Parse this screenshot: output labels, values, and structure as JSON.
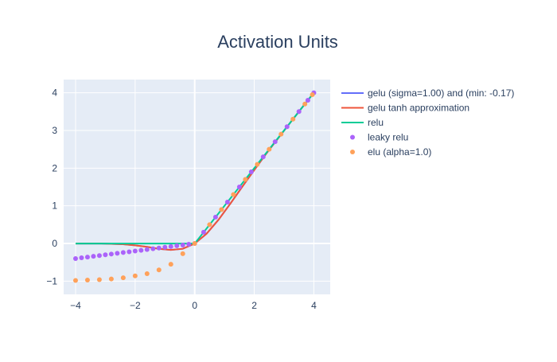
{
  "chart_data": {
    "type": "line",
    "title": "Activation Units",
    "xlabel": "",
    "ylabel": "",
    "xlim": [
      -4.4,
      4.55
    ],
    "ylim": [
      -1.35,
      4.35
    ],
    "xticks": [
      -4,
      -2,
      0,
      2,
      4
    ],
    "yticks": [
      -1,
      0,
      1,
      2,
      3,
      4
    ],
    "grid": true,
    "legend_position": "right",
    "colors": {
      "plot_bg": "#e5ecf6",
      "grid": "#ffffff",
      "text": "#2a3f5f"
    },
    "series": [
      {
        "name": "gelu (sigma=1.00) and (min: -0.17)",
        "mode": "lines",
        "color": "#636efa",
        "x": [
          -4,
          -3.6,
          -3.2,
          -2.8,
          -2.4,
          -2.0,
          -1.6,
          -1.2,
          -0.8,
          -0.4,
          0,
          0.4,
          0.8,
          1.2,
          1.6,
          2.0,
          2.4,
          2.8,
          3.2,
          3.6,
          4.0
        ],
        "y": [
          0.0,
          0.0,
          0.0,
          -0.01,
          -0.02,
          -0.05,
          -0.09,
          -0.14,
          -0.17,
          -0.14,
          0.0,
          0.26,
          0.63,
          1.06,
          1.51,
          1.95,
          2.38,
          2.79,
          3.2,
          3.6,
          4.0
        ]
      },
      {
        "name": "gelu tanh approximation",
        "mode": "lines",
        "color": "#ef553b",
        "x": [
          -4,
          -3.6,
          -3.2,
          -2.8,
          -2.4,
          -2.0,
          -1.6,
          -1.2,
          -0.8,
          -0.4,
          0,
          0.4,
          0.8,
          1.2,
          1.6,
          2.0,
          2.4,
          2.8,
          3.2,
          3.6,
          4.0
        ],
        "y": [
          0.0,
          0.0,
          0.0,
          -0.01,
          -0.02,
          -0.05,
          -0.09,
          -0.14,
          -0.17,
          -0.14,
          0.0,
          0.26,
          0.63,
          1.06,
          1.51,
          1.95,
          2.38,
          2.79,
          3.2,
          3.6,
          4.0
        ]
      },
      {
        "name": "relu",
        "mode": "lines",
        "color": "#00cc96",
        "x": [
          -4,
          -3.6,
          -3.2,
          -2.8,
          -2.4,
          -2.0,
          -1.6,
          -1.2,
          -0.8,
          -0.4,
          0,
          0.4,
          0.8,
          1.2,
          1.6,
          2.0,
          2.4,
          2.8,
          3.2,
          3.6,
          4.0
        ],
        "y": [
          0,
          0,
          0,
          0,
          0,
          0,
          0,
          0,
          0,
          0,
          0,
          0.4,
          0.8,
          1.2,
          1.6,
          2.0,
          2.4,
          2.8,
          3.2,
          3.6,
          4.0
        ]
      },
      {
        "name": "leaky relu",
        "mode": "markers",
        "color": "#ab63fa",
        "x": [
          -4,
          -3.8,
          -3.6,
          -3.4,
          -3.2,
          -3.0,
          -2.8,
          -2.6,
          -2.4,
          -2.2,
          -2.0,
          -1.8,
          -1.6,
          -1.4,
          -1.2,
          -1.0,
          -0.8,
          -0.6,
          -0.4,
          -0.2,
          0,
          0.3,
          0.7,
          1.1,
          1.5,
          1.9,
          2.3,
          2.7,
          3.1,
          3.5,
          3.8,
          4.0
        ],
        "y": [
          -0.4,
          -0.38,
          -0.36,
          -0.34,
          -0.32,
          -0.3,
          -0.28,
          -0.26,
          -0.24,
          -0.22,
          -0.2,
          -0.18,
          -0.16,
          -0.14,
          -0.12,
          -0.1,
          -0.08,
          -0.06,
          -0.04,
          -0.02,
          0,
          0.3,
          0.7,
          1.1,
          1.5,
          1.9,
          2.3,
          2.7,
          3.1,
          3.5,
          3.8,
          4.0
        ]
      },
      {
        "name": "elu (alpha=1.0)",
        "mode": "markers",
        "color": "#ffa15a",
        "x": [
          -4,
          -3.6,
          -3.2,
          -2.8,
          -2.4,
          -2.0,
          -1.6,
          -1.2,
          -0.8,
          -0.4,
          0,
          0.5,
          0.9,
          1.3,
          1.7,
          2.1,
          2.5,
          2.9,
          3.3,
          3.7,
          3.95
        ],
        "y": [
          -0.98,
          -0.97,
          -0.96,
          -0.94,
          -0.91,
          -0.86,
          -0.8,
          -0.7,
          -0.55,
          -0.27,
          0,
          0.5,
          0.9,
          1.3,
          1.7,
          2.1,
          2.5,
          2.9,
          3.3,
          3.7,
          3.95
        ]
      }
    ]
  }
}
